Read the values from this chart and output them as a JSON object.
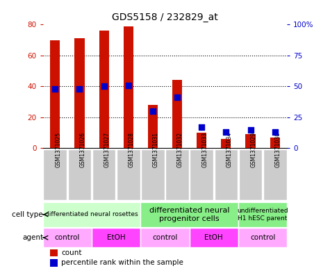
{
  "title": "GDS5158 / 232829_at",
  "samples": [
    "GSM1371025",
    "GSM1371026",
    "GSM1371027",
    "GSM1371028",
    "GSM1371031",
    "GSM1371032",
    "GSM1371033",
    "GSM1371034",
    "GSM1371029",
    "GSM1371030"
  ],
  "counts": [
    70,
    71,
    76,
    79,
    28,
    44,
    10,
    6,
    9,
    7
  ],
  "percentiles": [
    48,
    48,
    50,
    51,
    30,
    41,
    17,
    13,
    15,
    13
  ],
  "ylim_left": [
    0,
    80
  ],
  "ylim_right": [
    0,
    100
  ],
  "yticks_left": [
    0,
    20,
    40,
    60,
    80
  ],
  "yticks_right": [
    0,
    25,
    50,
    75,
    100
  ],
  "ytick_labels_right": [
    "0",
    "25",
    "50",
    "75",
    "100%"
  ],
  "bar_color": "#cc1100",
  "dot_color": "#0000cc",
  "bar_width": 0.4,
  "dot_size": 28,
  "cell_type_groups": [
    {
      "label": "differentiated neural rosettes",
      "samples": [
        0,
        1,
        2,
        3
      ],
      "color": "#ccffcc",
      "fontsize": 6.5
    },
    {
      "label": "differentiated neural\nprogenitor cells",
      "samples": [
        4,
        5,
        6,
        7
      ],
      "color": "#88ee88",
      "fontsize": 8
    },
    {
      "label": "undifferentiated\nH1 hESC parent",
      "samples": [
        8,
        9
      ],
      "color": "#88ee88",
      "fontsize": 6.5
    }
  ],
  "agent_groups": [
    {
      "label": "control",
      "samples": [
        0,
        1
      ],
      "color": "#ffaaff"
    },
    {
      "label": "EtOH",
      "samples": [
        2,
        3
      ],
      "color": "#ff44ff"
    },
    {
      "label": "control",
      "samples": [
        4,
        5
      ],
      "color": "#ffaaff"
    },
    {
      "label": "EtOH",
      "samples": [
        6,
        7
      ],
      "color": "#ff44ff"
    },
    {
      "label": "control",
      "samples": [
        8,
        9
      ],
      "color": "#ffaaff"
    }
  ],
  "legend_count_color": "#cc1100",
  "legend_pct_color": "#0000cc",
  "row_label_cell_type": "cell type",
  "row_label_agent": "agent",
  "tick_color_left": "#cc1100",
  "tick_color_right": "#0000cc",
  "sample_box_color": "#cccccc",
  "bg_color": "#ffffff",
  "n_samples": 10
}
